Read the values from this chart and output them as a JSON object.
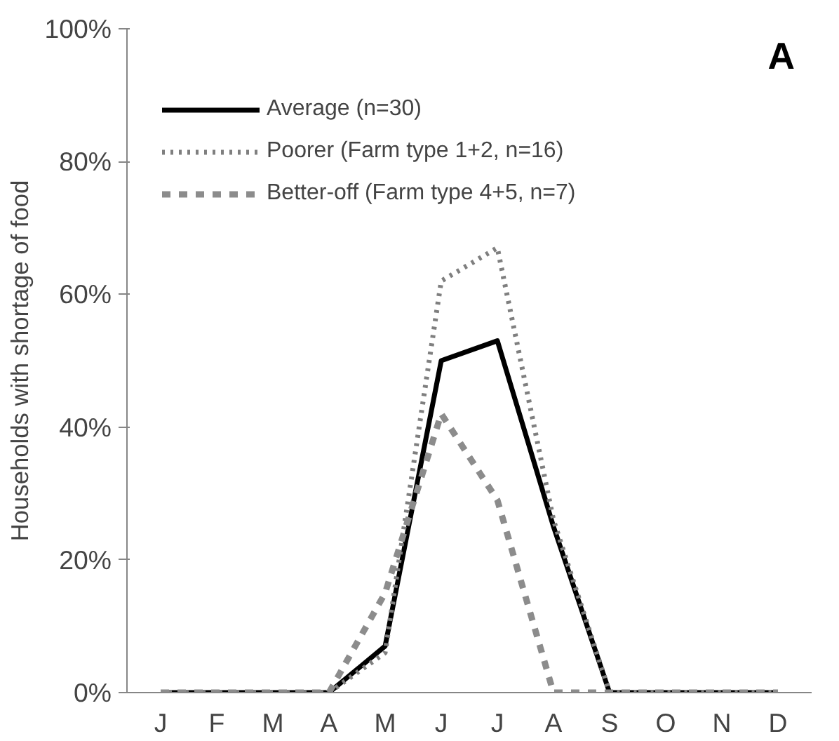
{
  "chart_data": {
    "type": "line",
    "ylabel": "Households with shortage of food",
    "categories": [
      "J",
      "F",
      "M",
      "A",
      "M",
      "J",
      "J",
      "A",
      "S",
      "O",
      "N",
      "D"
    ],
    "series": [
      {
        "name": "Average (n=30)",
        "color": "#000000",
        "line_style": "solid",
        "values": [
          0,
          0,
          0,
          0,
          7,
          50,
          53,
          25,
          0,
          0,
          0,
          0
        ]
      },
      {
        "name": "Poorer (Farm type 1+2, n=16)",
        "color": "#7f7f7f",
        "line_style": "dotted",
        "values": [
          0,
          0,
          0,
          0,
          6,
          62,
          67,
          26,
          0,
          0,
          0,
          0
        ]
      },
      {
        "name": "Better-off (Farm type 4+5, n=7)",
        "color": "#8c8c8c",
        "line_style": "dashed",
        "values": [
          0,
          0,
          0,
          0,
          15,
          42,
          29,
          0,
          0,
          0,
          0,
          0
        ]
      }
    ],
    "ylim": [
      0,
      100
    ],
    "yticks": [
      {
        "value": 0,
        "label": "0%"
      },
      {
        "value": 20,
        "label": "20%"
      },
      {
        "value": 40,
        "label": "40%"
      },
      {
        "value": 60,
        "label": "60%"
      },
      {
        "value": 80,
        "label": "80%"
      },
      {
        "value": 100,
        "label": "100%"
      }
    ],
    "grid": false,
    "legend": "top",
    "marker": "none",
    "annotations": [
      "A"
    ]
  }
}
